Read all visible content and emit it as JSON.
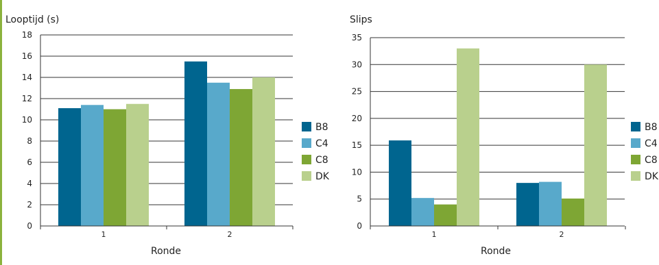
{
  "chart_data": [
    {
      "type": "bar",
      "title": "Looptijd (s)",
      "xlabel": "Ronde",
      "ylabel": "",
      "categories": [
        "1",
        "2"
      ],
      "ylim": [
        0,
        18
      ],
      "yticks": [
        0,
        2,
        4,
        6,
        8,
        10,
        12,
        14,
        16,
        18
      ],
      "grid": true,
      "legend_position": "right",
      "series": [
        {
          "name": "B8",
          "color": "#00658f",
          "values": [
            11.1,
            15.5
          ]
        },
        {
          "name": "C4",
          "color": "#58a9cb",
          "values": [
            11.4,
            13.5
          ]
        },
        {
          "name": "C8",
          "color": "#7ea634",
          "values": [
            11.0,
            12.9
          ]
        },
        {
          "name": "DK",
          "color": "#b9d08d",
          "values": [
            11.5,
            14.0
          ]
        }
      ]
    },
    {
      "type": "bar",
      "title": "Slips",
      "xlabel": "Ronde",
      "ylabel": "",
      "categories": [
        "1",
        "2"
      ],
      "ylim": [
        0,
        35
      ],
      "yticks": [
        0,
        5,
        10,
        15,
        20,
        25,
        30,
        35
      ],
      "grid": true,
      "legend_position": "right",
      "series": [
        {
          "name": "B8",
          "color": "#00658f",
          "values": [
            15.9,
            8.0
          ]
        },
        {
          "name": "C4",
          "color": "#58a9cb",
          "values": [
            5.2,
            8.2
          ]
        },
        {
          "name": "C8",
          "color": "#7ea634",
          "values": [
            4.0,
            5.1
          ]
        },
        {
          "name": "DK",
          "color": "#b9d08d",
          "values": [
            33.0,
            30.0
          ]
        }
      ]
    }
  ]
}
